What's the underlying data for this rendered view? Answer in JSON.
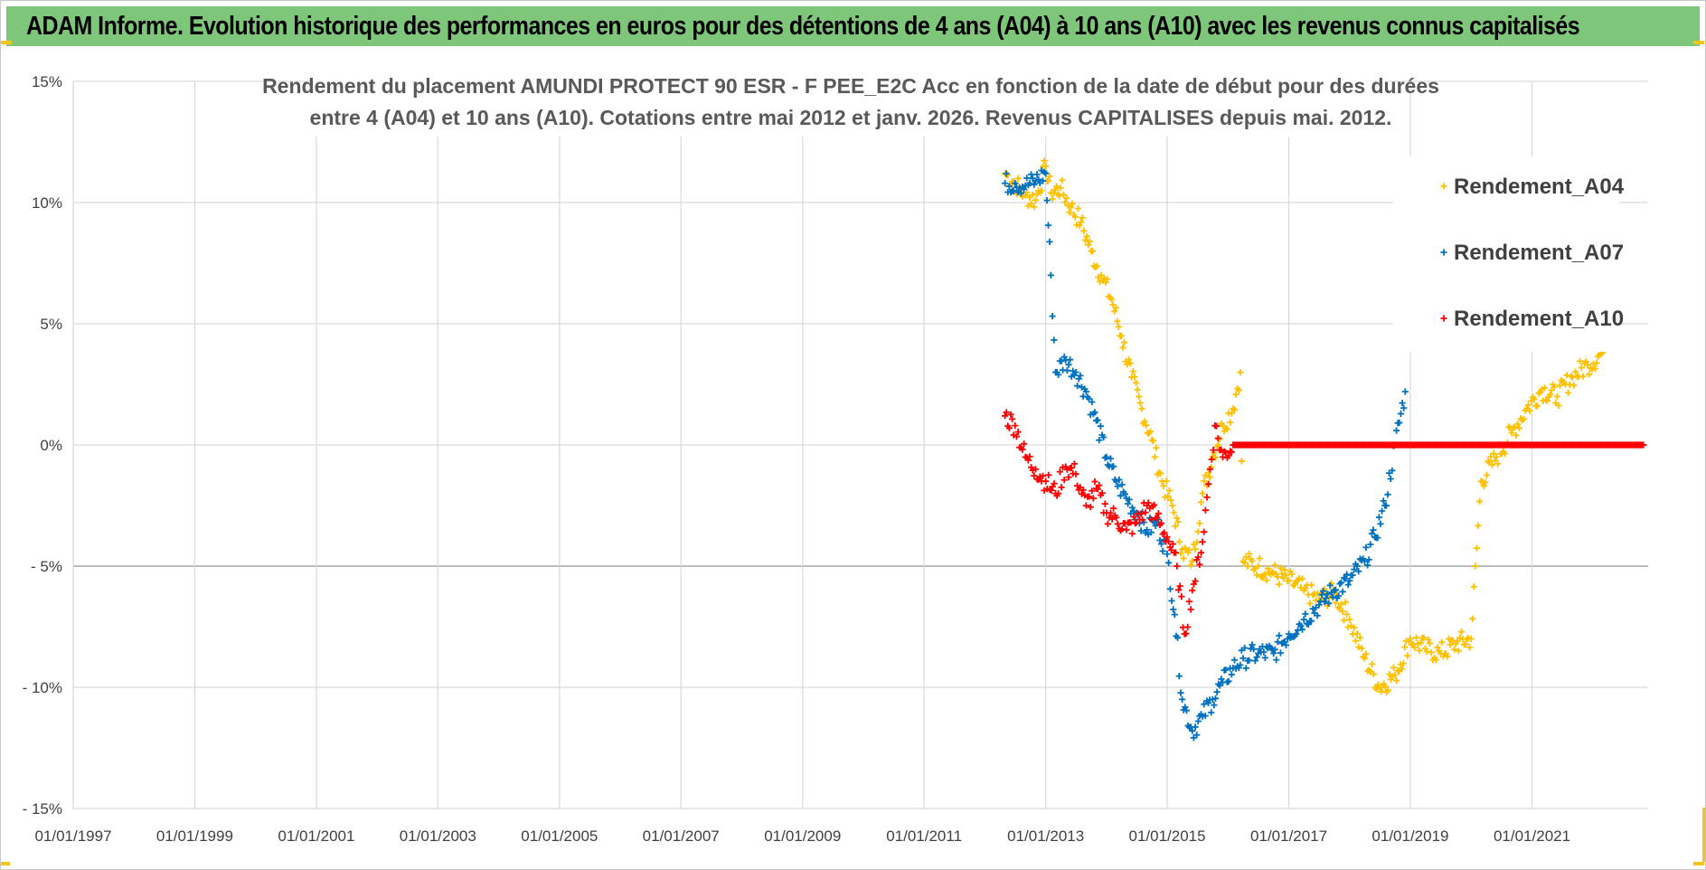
{
  "banner": {
    "title": "ADAM Informe. Evolution historique des performances en euros pour des détentions de 4 ans (A04) à 10 ans (A10) avec les revenus connus capitalisés"
  },
  "chart_data": {
    "type": "scatter",
    "title_lines": [
      "Rendement du placement AMUNDI PROTECT 90 ESR - F PEE_E2C Acc en fonction de la date de début pour des durées",
      "entre 4 (A04) et 10 ans (A10). Cotations entre mai 2012 et janv. 2026. Revenus CAPITALISES depuis mai. 2012."
    ],
    "xlabel": "",
    "ylabel": "",
    "x_range": [
      "1997-01-01",
      "2022-11-30"
    ],
    "y_range": [
      -15,
      15
    ],
    "x_ticks": [
      "01/01/1997",
      "01/01/1999",
      "01/01/2001",
      "01/01/2003",
      "01/01/2005",
      "01/01/2007",
      "01/01/2009",
      "01/01/2011",
      "01/01/2013",
      "01/01/2015",
      "01/01/2017",
      "01/01/2019",
      "01/01/2021"
    ],
    "y_ticks": [
      {
        "value": 15,
        "label": "15%"
      },
      {
        "value": 10,
        "label": "10%"
      },
      {
        "value": 5,
        "label": "5%"
      },
      {
        "value": 0,
        "label": "0%"
      },
      {
        "value": -5,
        "label": "- 5%"
      },
      {
        "value": -10,
        "label": "- 10%"
      },
      {
        "value": -15,
        "label": "- 15%"
      }
    ],
    "grid": true,
    "legend_position": "right",
    "marker": "+",
    "series": [
      {
        "name": "Rendement_A04",
        "color": "#ffc000",
        "points": [
          [
            "2012-05-01",
            11.2
          ],
          [
            "2012-07-01",
            10.8
          ],
          [
            "2012-09-01",
            10.3
          ],
          [
            "2012-11-01",
            10.1
          ],
          [
            "2013-01-01",
            11.5
          ],
          [
            "2013-02-01",
            10.4
          ],
          [
            "2013-04-01",
            10.6
          ],
          [
            "2013-06-01",
            9.8
          ],
          [
            "2013-08-01",
            9.2
          ],
          [
            "2013-10-01",
            8.0
          ],
          [
            "2013-12-01",
            7.0
          ],
          [
            "2014-02-01",
            6.0
          ],
          [
            "2014-04-01",
            4.5
          ],
          [
            "2014-06-01",
            2.8
          ],
          [
            "2014-08-01",
            1.5
          ],
          [
            "2014-10-01",
            0.2
          ],
          [
            "2014-12-01",
            -1.5
          ],
          [
            "2015-02-01",
            -2.5
          ],
          [
            "2015-04-01",
            -4.3
          ],
          [
            "2015-06-01",
            -4.8
          ],
          [
            "2015-08-01",
            -2.0
          ],
          [
            "2015-10-01",
            -0.5
          ],
          [
            "2015-12-01",
            0.8
          ],
          [
            "2016-02-01",
            1.5
          ],
          [
            "2016-03-15",
            3.0
          ],
          [
            "2016-04-01",
            -4.8
          ],
          [
            "2016-07-01",
            -5.0
          ],
          [
            "2016-10-01",
            -5.3
          ],
          [
            "2017-01-01",
            -5.6
          ],
          [
            "2017-04-01",
            -6.0
          ],
          [
            "2017-07-01",
            -6.4
          ],
          [
            "2017-10-01",
            -6.1
          ],
          [
            "2018-01-01",
            -7.2
          ],
          [
            "2018-04-01",
            -8.8
          ],
          [
            "2018-07-01",
            -10.0
          ],
          [
            "2018-10-01",
            -9.5
          ],
          [
            "2019-01-01",
            -8.0
          ],
          [
            "2019-04-01",
            -8.4
          ],
          [
            "2019-07-01",
            -8.6
          ],
          [
            "2019-10-01",
            -8.2
          ],
          [
            "2020-01-01",
            -8.0
          ],
          [
            "2020-03-01",
            -1.5
          ],
          [
            "2020-06-01",
            -0.5
          ],
          [
            "2020-09-01",
            0.5
          ],
          [
            "2020-12-01",
            1.5
          ],
          [
            "2021-03-01",
            2.3
          ],
          [
            "2021-06-01",
            2.0
          ],
          [
            "2021-09-01",
            2.8
          ],
          [
            "2021-12-01",
            3.3
          ],
          [
            "2022-03-01",
            3.8
          ]
        ]
      },
      {
        "name": "Rendement_A07",
        "color": "#0070c0",
        "points": [
          [
            "2012-05-01",
            10.8
          ],
          [
            "2012-07-01",
            10.8
          ],
          [
            "2012-09-01",
            10.7
          ],
          [
            "2012-11-01",
            10.9
          ],
          [
            "2013-01-01",
            11.2
          ],
          [
            "2013-02-01",
            7.0
          ],
          [
            "2013-03-01",
            3.0
          ],
          [
            "2013-05-01",
            3.5
          ],
          [
            "2013-07-01",
            3.0
          ],
          [
            "2013-09-01",
            2.2
          ],
          [
            "2013-11-01",
            1.0
          ],
          [
            "2014-01-01",
            -0.5
          ],
          [
            "2014-03-01",
            -1.5
          ],
          [
            "2014-05-01",
            -2.2
          ],
          [
            "2014-07-01",
            -2.8
          ],
          [
            "2014-09-01",
            -3.5
          ],
          [
            "2014-11-01",
            -3.2
          ],
          [
            "2015-01-01",
            -4.5
          ],
          [
            "2015-02-15",
            -7.0
          ],
          [
            "2015-04-01",
            -10.5
          ],
          [
            "2015-06-01",
            -11.8
          ],
          [
            "2015-08-01",
            -11.2
          ],
          [
            "2015-10-01",
            -10.5
          ],
          [
            "2015-12-01",
            -9.8
          ],
          [
            "2016-02-01",
            -9.2
          ],
          [
            "2016-04-01",
            -8.8
          ],
          [
            "2016-07-01",
            -8.6
          ],
          [
            "2016-10-01",
            -8.6
          ],
          [
            "2017-01-01",
            -7.8
          ],
          [
            "2017-04-01",
            -7.2
          ],
          [
            "2017-07-01",
            -6.6
          ],
          [
            "2017-10-01",
            -6.0
          ],
          [
            "2018-01-01",
            -5.6
          ],
          [
            "2018-04-01",
            -4.8
          ],
          [
            "2018-06-01",
            -3.8
          ],
          [
            "2018-08-01",
            -2.5
          ],
          [
            "2018-10-01",
            0.0
          ],
          [
            "2018-12-01",
            2.2
          ]
        ]
      },
      {
        "name": "Rendement_A10",
        "color": "#ff0000",
        "points": [
          [
            "2012-05-01",
            1.2
          ],
          [
            "2012-07-01",
            0.8
          ],
          [
            "2012-09-01",
            -0.5
          ],
          [
            "2012-11-01",
            -1.0
          ],
          [
            "2013-01-01",
            -1.5
          ],
          [
            "2013-03-01",
            -2.0
          ],
          [
            "2013-05-01",
            -0.9
          ],
          [
            "2013-07-01",
            -1.2
          ],
          [
            "2013-09-01",
            -2.5
          ],
          [
            "2013-11-01",
            -1.8
          ],
          [
            "2014-01-01",
            -2.8
          ],
          [
            "2014-03-01",
            -3.0
          ],
          [
            "2014-05-01",
            -3.5
          ],
          [
            "2014-07-01",
            -3.2
          ],
          [
            "2014-09-01",
            -2.5
          ],
          [
            "2014-11-01",
            -3.0
          ],
          [
            "2015-01-01",
            -3.8
          ],
          [
            "2015-03-01",
            -5.0
          ],
          [
            "2015-04-15",
            -7.8
          ],
          [
            "2015-06-01",
            -6.0
          ],
          [
            "2015-08-01",
            -4.0
          ],
          [
            "2015-09-15",
            -1.0
          ],
          [
            "2015-10-15",
            0.8
          ],
          [
            "2015-12-01",
            -0.5
          ],
          [
            "2016-02-01",
            0.0
          ],
          [
            "2016-06-01",
            0.0
          ],
          [
            "2017-01-01",
            0.0
          ],
          [
            "2018-01-01",
            0.0
          ],
          [
            "2019-01-01",
            0.0
          ],
          [
            "2020-01-01",
            0.0
          ],
          [
            "2021-01-01",
            0.0
          ],
          [
            "2022-01-01",
            0.0
          ],
          [
            "2022-11-01",
            0.0
          ]
        ]
      }
    ]
  }
}
